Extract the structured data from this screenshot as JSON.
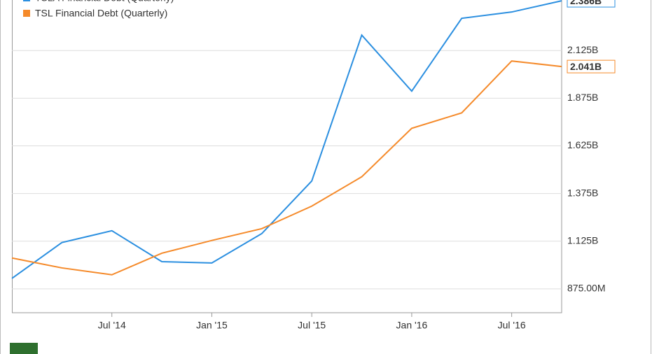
{
  "chart_data": {
    "type": "line",
    "categories": [
      null,
      null,
      "Jul '14",
      null,
      "Jan '15",
      null,
      "Jul '15",
      null,
      "Jan '16",
      null,
      "Jul '16",
      null
    ],
    "series": [
      {
        "name": "TSLA Financial Debt (Quarterly)",
        "color": "#2b8fe0",
        "values": [
          930000000,
          1118000000,
          1180000000,
          1018000000,
          1011000000,
          1165000000,
          1441000000,
          2206000000,
          1912000000,
          2294000000,
          2327000000,
          2386000000
        ],
        "value_labels": [
          null,
          null,
          null,
          null,
          null,
          null,
          null,
          null,
          null,
          null,
          null,
          "2.386B"
        ]
      },
      {
        "name": "TSL Financial Debt (Quarterly)",
        "color": "#f58a2a",
        "values": [
          1037000000,
          985000000,
          949000000,
          1062000000,
          1129000000,
          1191000000,
          1309000000,
          1463000000,
          1717000000,
          1798000000,
          2070000000,
          2041000000
        ],
        "value_labels": [
          null,
          null,
          null,
          null,
          null,
          null,
          null,
          null,
          null,
          null,
          null,
          "2.041B"
        ]
      }
    ],
    "ylim": [
      750000000,
      2390000000
    ],
    "yticks": [
      {
        "value": 875000000,
        "label": "875.00M"
      },
      {
        "value": 1125000000,
        "label": "1.125B"
      },
      {
        "value": 1375000000,
        "label": "1.375B"
      },
      {
        "value": 1625000000,
        "label": "1.625B"
      },
      {
        "value": 1875000000,
        "label": "1.875B"
      },
      {
        "value": 2125000000,
        "label": "2.125B"
      }
    ],
    "grid": true,
    "legend": "top-left"
  }
}
